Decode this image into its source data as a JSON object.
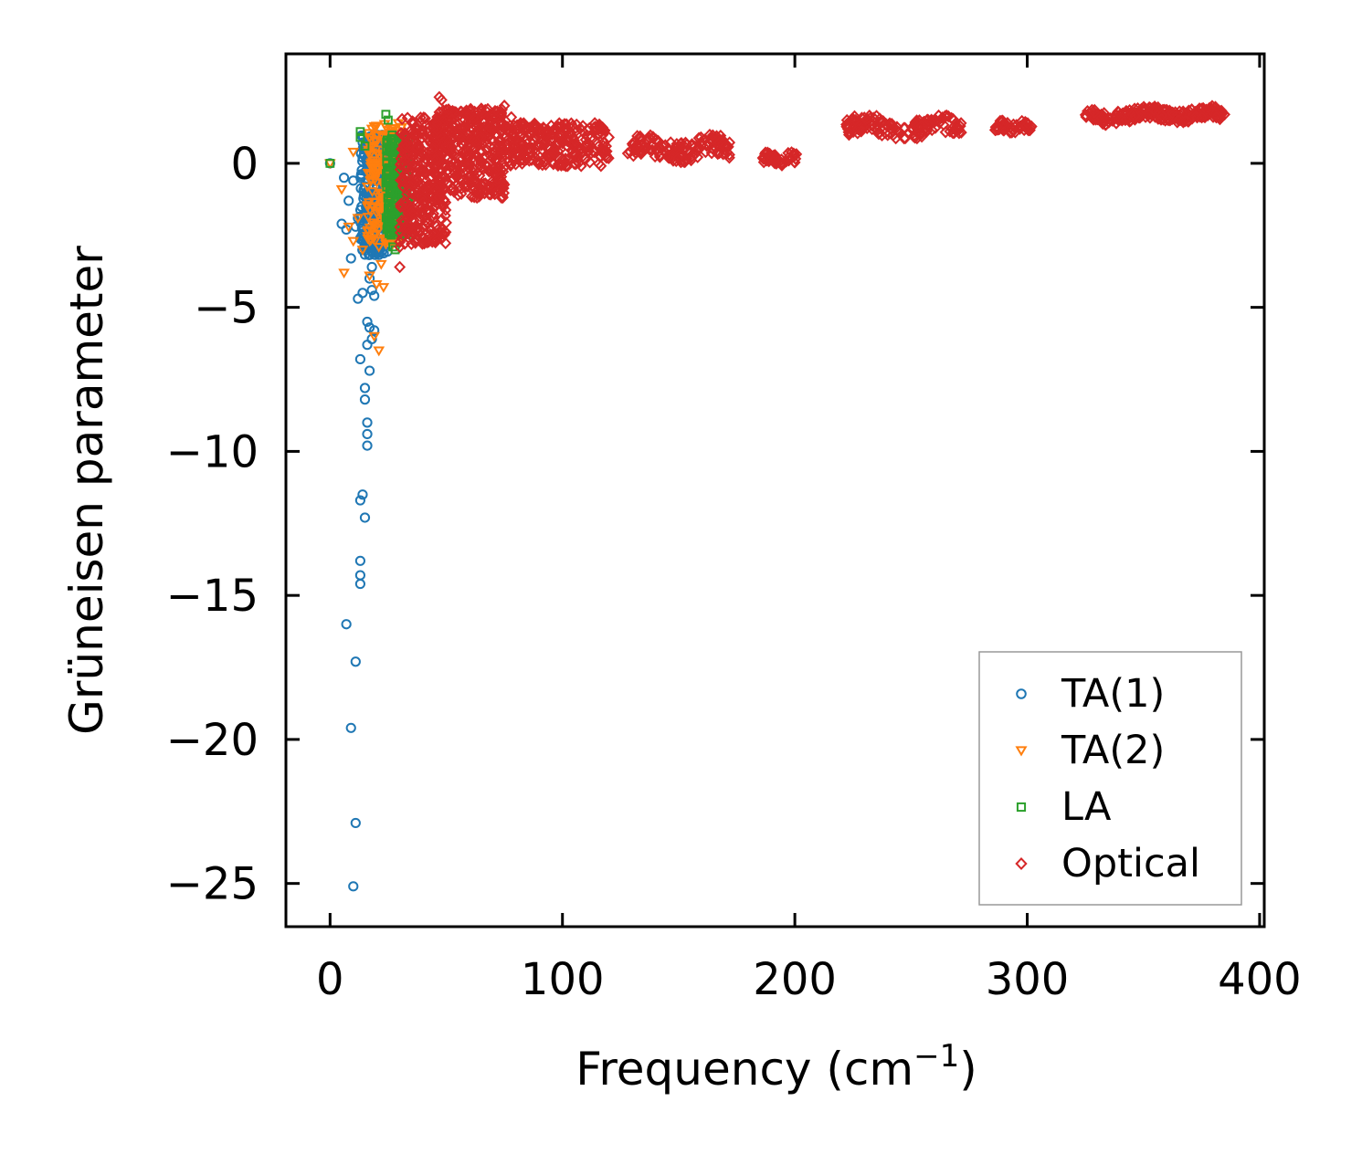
{
  "chart_data": {
    "type": "scatter",
    "title": "",
    "xlabel": "Frequency (cm",
    "xlabel_sup": "−1",
    "xlabel_end": ")",
    "ylabel": "Grüneisen parameter",
    "xlim": [
      -19,
      402
    ],
    "ylim": [
      -26.5,
      3.8
    ],
    "xticks": [
      0,
      100,
      200,
      300,
      400
    ],
    "xtick_labels": [
      "0",
      "100",
      "200",
      "300",
      "400"
    ],
    "yticks": [
      0,
      -5,
      -10,
      -15,
      -20,
      -25
    ],
    "ytick_labels": [
      "0",
      "−5",
      "−10",
      "−15",
      "−20",
      "−25"
    ],
    "grid": false,
    "legend_position": "lower-right",
    "series": [
      {
        "name": "TA(1)",
        "marker": "circle",
        "color": "#1f77b4",
        "points": [
          [
            0,
            0
          ],
          [
            6,
            -0.5
          ],
          [
            5,
            -2.1
          ],
          [
            7,
            -2.3
          ],
          [
            8,
            -1.3
          ],
          [
            9,
            -3.3
          ],
          [
            10,
            -0.6
          ],
          [
            11,
            -2.2
          ],
          [
            12,
            -4.7
          ],
          [
            12,
            -1.9
          ],
          [
            13,
            -6.8
          ],
          [
            13,
            -2.6
          ],
          [
            14,
            -3.0
          ],
          [
            14,
            -4.5
          ],
          [
            15,
            -7.8
          ],
          [
            15,
            -8.2
          ],
          [
            16,
            -5.5
          ],
          [
            16,
            -6.3
          ],
          [
            16,
            -9.0
          ],
          [
            16,
            -9.8
          ],
          [
            16,
            -9.4
          ],
          [
            17,
            -7.2
          ],
          [
            17,
            -4.0
          ],
          [
            17,
            -5.7
          ],
          [
            18,
            -6.1
          ],
          [
            18,
            -4.4
          ],
          [
            19,
            -5.8
          ],
          [
            19,
            -4.6
          ],
          [
            13,
            -11.7
          ],
          [
            14,
            -11.5
          ],
          [
            15,
            -12.3
          ],
          [
            13,
            -13.8
          ],
          [
            13,
            -14.3
          ],
          [
            13,
            -14.6
          ],
          [
            7,
            -16.0
          ],
          [
            11,
            -17.3
          ],
          [
            9,
            -19.6
          ],
          [
            11,
            -22.9
          ],
          [
            10,
            -25.1
          ],
          [
            14,
            0.2
          ],
          [
            15,
            -0.8
          ],
          [
            16,
            -1.6
          ],
          [
            17,
            0.6
          ],
          [
            18,
            -0.2
          ],
          [
            19,
            0.9
          ],
          [
            20,
            -0.5
          ],
          [
            21,
            -1.2
          ],
          [
            22,
            0.3
          ],
          [
            23,
            -2.0
          ],
          [
            24,
            -0.1
          ],
          [
            18,
            -3.6
          ],
          [
            19,
            -2.8
          ],
          [
            20,
            -2.1
          ],
          [
            21,
            -3.1
          ],
          [
            22,
            -1.5
          ],
          [
            20,
            0.7
          ],
          [
            19,
            -1.0
          ],
          [
            17,
            -1.8
          ],
          [
            18,
            -2.4
          ],
          [
            21,
            -0.3
          ]
        ],
        "clusters": [
          {
            "x": [
              13,
              25
            ],
            "y": [
              -3.2,
              1.0
            ],
            "n": 260
          }
        ]
      },
      {
        "name": "TA(2)",
        "marker": "triangle",
        "color": "#ff7f0e",
        "points": [
          [
            0,
            0
          ],
          [
            5,
            -0.9
          ],
          [
            6,
            -3.8
          ],
          [
            8,
            -2.2
          ],
          [
            10,
            -2.7
          ],
          [
            10,
            0.4
          ],
          [
            12,
            -1.9
          ],
          [
            14,
            -3.0
          ],
          [
            17,
            -3.9
          ],
          [
            19,
            -6.0
          ],
          [
            20,
            -4.2
          ],
          [
            21,
            -6.5
          ],
          [
            23,
            -4.3
          ],
          [
            22,
            -3.5
          ],
          [
            24,
            -2.8
          ],
          [
            25,
            -2.0
          ],
          [
            26,
            -1.1
          ],
          [
            27,
            0.2
          ],
          [
            28,
            0.8
          ],
          [
            29,
            -0.5
          ],
          [
            18,
            1.2
          ],
          [
            20,
            1.3
          ],
          [
            22,
            1.0
          ],
          [
            24,
            0.6
          ],
          [
            26,
            -2.6
          ],
          [
            27,
            -1.7
          ],
          [
            23,
            -0.7
          ],
          [
            21,
            -2.9
          ],
          [
            25,
            0.9
          ],
          [
            28,
            -1.4
          ]
        ],
        "clusters": [
          {
            "x": [
              16,
              31
            ],
            "y": [
              -2.8,
              1.4
            ],
            "n": 220
          }
        ]
      },
      {
        "name": "LA",
        "marker": "square",
        "color": "#2ca02c",
        "points": [
          [
            0,
            0
          ],
          [
            13,
            0.9
          ],
          [
            13,
            1.1
          ],
          [
            15,
            0.6
          ],
          [
            24,
            1.7
          ],
          [
            25,
            1.5
          ],
          [
            27,
            -2.9
          ],
          [
            28,
            -3.0
          ],
          [
            30,
            -1.7
          ],
          [
            31,
            0.9
          ],
          [
            32,
            0.5
          ],
          [
            26,
            -2.3
          ],
          [
            29,
            -0.7
          ],
          [
            31,
            -1.2
          ],
          [
            28,
            0.4
          ]
        ],
        "clusters": [
          {
            "x": [
              24,
              34
            ],
            "y": [
              -2.5,
              1.0
            ],
            "n": 200
          }
        ]
      },
      {
        "name": "Optical",
        "marker": "diamond",
        "color": "#d62728",
        "points": [
          [
            30,
            -3.6
          ],
          [
            30,
            -2.9
          ],
          [
            31,
            -2.6
          ],
          [
            32,
            -2.0
          ],
          [
            33,
            -1.4
          ],
          [
            35,
            -2.8
          ],
          [
            36,
            -2.4
          ],
          [
            38,
            -1.5
          ],
          [
            40,
            -0.8
          ],
          [
            42,
            -0.2
          ],
          [
            44,
            0.5
          ],
          [
            46,
            1.4
          ],
          [
            47,
            2.3
          ],
          [
            48,
            2.2
          ],
          [
            50,
            1.5
          ],
          [
            52,
            0.6
          ],
          [
            55,
            1.0
          ],
          [
            58,
            1.2
          ],
          [
            60,
            1.7
          ],
          [
            63,
            1.1
          ],
          [
            65,
            0.9
          ],
          [
            68,
            1.6
          ],
          [
            72,
            1.8
          ],
          [
            75,
            2.0
          ],
          [
            78,
            1.6
          ],
          [
            82,
            1.4
          ],
          [
            85,
            1.2
          ],
          [
            90,
            1.0
          ],
          [
            95,
            0.8
          ],
          [
            100,
            0.7
          ],
          [
            105,
            0.8
          ],
          [
            110,
            0.6
          ],
          [
            115,
            1.0
          ],
          [
            120,
            0.9
          ]
        ],
        "clusters": [
          {
            "x": [
              30,
              50
            ],
            "y": [
              -2.8,
              1.6
            ],
            "n": 360
          },
          {
            "x": [
              45,
              75
            ],
            "y": [
              -1.2,
              1.9
            ],
            "n": 380
          },
          {
            "x": [
              75,
              120
            ],
            "y": [
              -0.1,
              1.4
            ],
            "n": 260
          }
        ],
        "bands": [
          {
            "x": [
              128,
              172
            ],
            "y": [
              0.0,
              1.0
            ],
            "n": 150
          },
          {
            "x": [
              186,
              201
            ],
            "y": [
              -0.1,
              0.4
            ],
            "n": 50
          },
          {
            "x": [
              222,
              272
            ],
            "y": [
              0.8,
              1.7
            ],
            "n": 150
          },
          {
            "x": [
              286,
              302
            ],
            "y": [
              1.0,
              1.5
            ],
            "n": 50
          },
          {
            "x": [
              325,
              345
            ],
            "y": [
              1.3,
              1.9
            ],
            "n": 70
          },
          {
            "x": [
              345,
              385
            ],
            "y": [
              1.4,
              2.0
            ],
            "n": 170
          }
        ]
      }
    ]
  }
}
